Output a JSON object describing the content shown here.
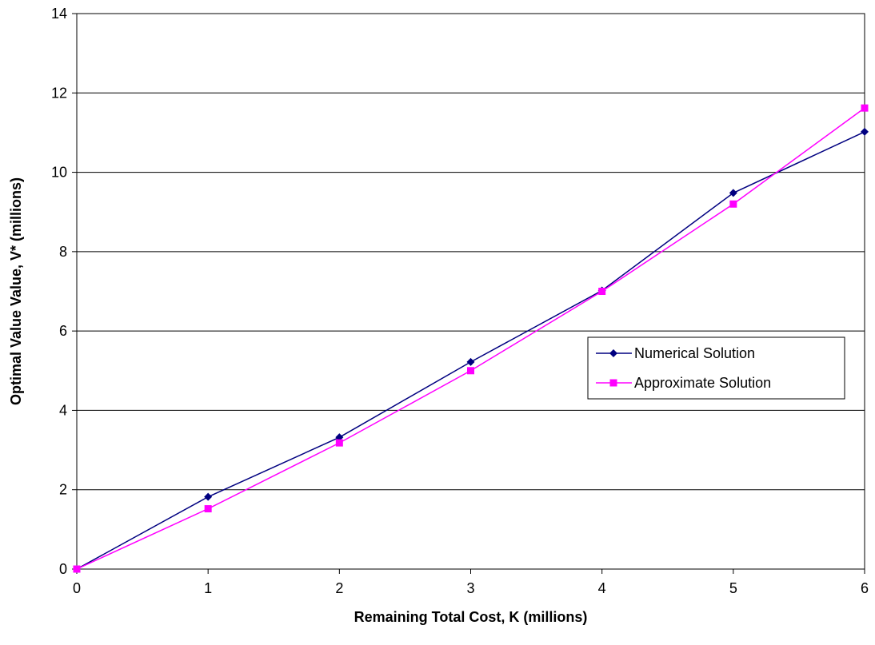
{
  "chart_data": {
    "type": "line",
    "title": "",
    "xlabel": "Remaining Total Cost, K (millions)",
    "ylabel": "Optimal Value Value, V* (millions)",
    "xlim": [
      0,
      6
    ],
    "ylim": [
      0,
      14
    ],
    "x_ticks": [
      0,
      1,
      2,
      3,
      4,
      5,
      6
    ],
    "y_ticks": [
      0,
      2,
      4,
      6,
      8,
      10,
      12,
      14
    ],
    "x_tick_labels": [
      "0",
      "1",
      "2",
      "3",
      "4",
      "5",
      "6"
    ],
    "y_tick_labels": [
      "0",
      "2",
      "4",
      "6",
      "8",
      "10",
      "12",
      "14"
    ],
    "grid": "horizontal",
    "legend_position": "right",
    "x": [
      0,
      1,
      2,
      3,
      4,
      5,
      6
    ],
    "series": [
      {
        "name": "Numerical Solution",
        "values": [
          0,
          1.82,
          3.32,
          5.22,
          7.02,
          9.48,
          11.02
        ],
        "color": "#000080",
        "marker": "diamond"
      },
      {
        "name": "Approximate Solution",
        "values": [
          0,
          1.52,
          3.18,
          5.0,
          7.0,
          9.2,
          11.62
        ],
        "color": "#ff00ff",
        "marker": "square"
      }
    ]
  }
}
